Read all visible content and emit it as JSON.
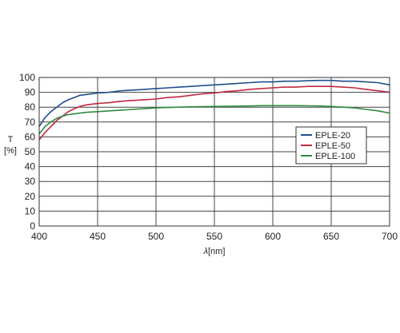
{
  "chart_data": {
    "type": "line",
    "title": "",
    "xlabel": "λ",
    "xlabel_unit": "[nm]",
    "ylabel": "T",
    "ylabel_unit": "[%]",
    "xlim": [
      400,
      700
    ],
    "ylim": [
      0,
      100
    ],
    "x_ticks": [
      400,
      450,
      500,
      550,
      600,
      650,
      700
    ],
    "y_ticks": [
      0,
      10,
      20,
      30,
      40,
      50,
      60,
      70,
      80,
      90,
      100
    ],
    "grid": true,
    "legend_position": "right",
    "series": [
      {
        "name": "EPLE-20",
        "color": "#1f4e8c",
        "x": [
          400,
          405,
          410,
          415,
          420,
          425,
          430,
          435,
          440,
          450,
          460,
          470,
          480,
          490,
          500,
          510,
          520,
          530,
          540,
          550,
          560,
          570,
          580,
          590,
          600,
          610,
          620,
          630,
          640,
          650,
          660,
          670,
          680,
          690,
          700
        ],
        "y": [
          67,
          73,
          77,
          80,
          83,
          85,
          86.5,
          88,
          88.5,
          89.5,
          90,
          91,
          91.5,
          92,
          92.5,
          93,
          93.5,
          94,
          94.5,
          95,
          95.5,
          96,
          96.5,
          97,
          97,
          97.5,
          97.5,
          97.8,
          98,
          98,
          97.5,
          97.5,
          97,
          96.5,
          95
        ]
      },
      {
        "name": "EPLE-50",
        "color": "#c0283c",
        "x": [
          400,
          405,
          410,
          415,
          420,
          425,
          430,
          435,
          440,
          450,
          460,
          470,
          480,
          490,
          500,
          510,
          520,
          530,
          540,
          550,
          560,
          570,
          580,
          590,
          600,
          610,
          620,
          630,
          640,
          650,
          660,
          670,
          680,
          690,
          700
        ],
        "y": [
          58,
          63,
          67,
          71,
          74,
          77,
          79,
          80.5,
          81.5,
          82.5,
          83,
          84,
          84.5,
          85,
          85.5,
          86.5,
          87,
          88,
          89,
          89.5,
          90.5,
          91,
          92,
          92.5,
          93,
          93.5,
          93.5,
          94,
          94,
          94,
          93.5,
          93,
          92,
          91,
          90
        ]
      },
      {
        "name": "EPLE-100",
        "color": "#2e8b3e",
        "x": [
          400,
          405,
          410,
          415,
          420,
          425,
          430,
          435,
          440,
          450,
          460,
          470,
          480,
          490,
          500,
          510,
          520,
          530,
          540,
          550,
          560,
          570,
          580,
          590,
          600,
          610,
          620,
          630,
          640,
          650,
          660,
          670,
          680,
          690,
          700
        ],
        "y": [
          62,
          67,
          70,
          72.5,
          74,
          75,
          75.5,
          76,
          76.5,
          77,
          77.5,
          78,
          78.5,
          79,
          79.5,
          79.8,
          80,
          80.2,
          80.4,
          80.5,
          80.6,
          80.7,
          80.8,
          81,
          81,
          81,
          81,
          80.9,
          80.8,
          80.5,
          80,
          79.5,
          78.5,
          77.5,
          76
        ]
      }
    ]
  }
}
